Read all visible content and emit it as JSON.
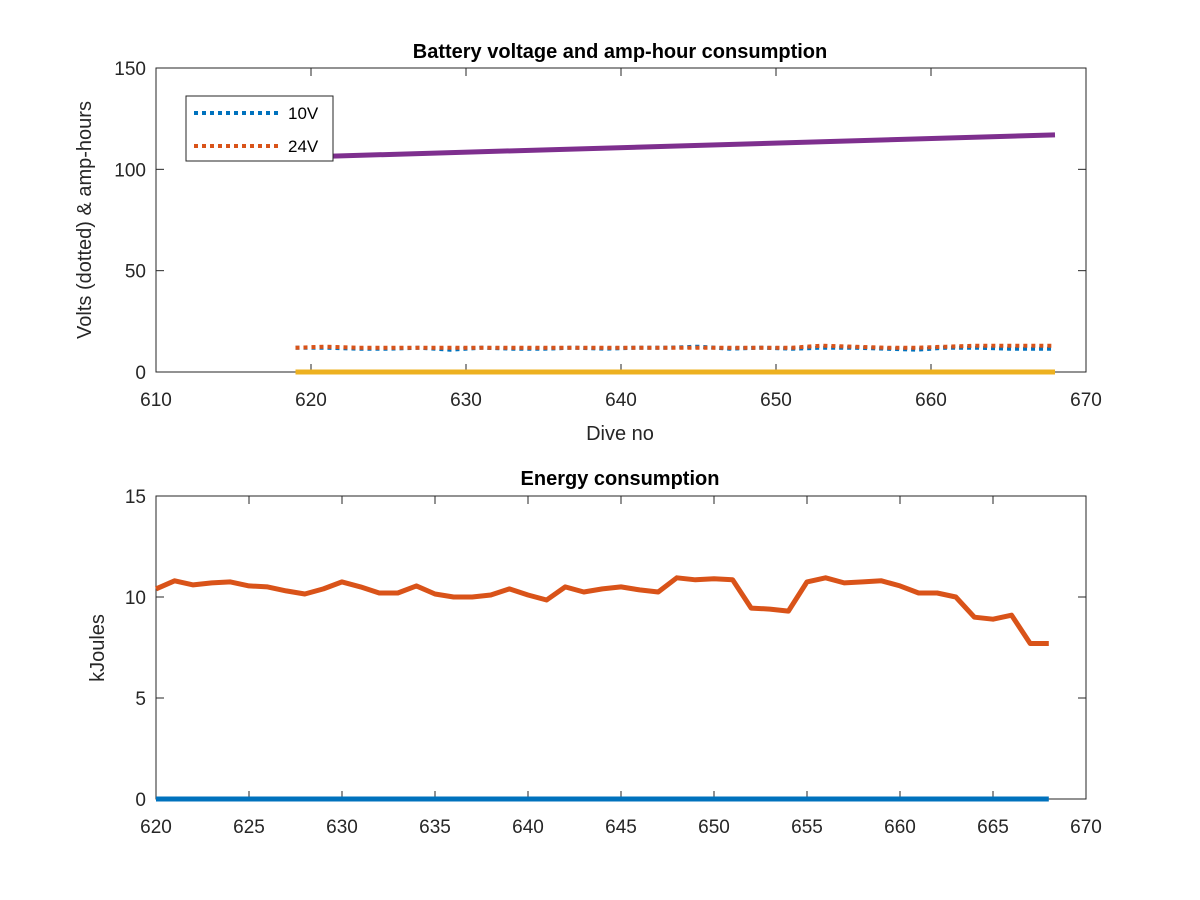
{
  "chart_data": [
    {
      "type": "line",
      "title": "Battery voltage and amp-hour consumption",
      "xlabel": "Dive no",
      "ylabel": "Volts (dotted) & amp-hours",
      "xlim": [
        610,
        670
      ],
      "ylim": [
        0,
        150
      ],
      "xticks": [
        "610",
        "620",
        "630",
        "640",
        "650",
        "660",
        "670"
      ],
      "yticks": [
        "0",
        "50",
        "100",
        "150"
      ],
      "legend_position": "top-left",
      "grid": false,
      "series": [
        {
          "name": "10V",
          "style": "dotted",
          "color": "#0072BD",
          "x": [
            619,
            621,
            623,
            625,
            627,
            629,
            631,
            633,
            635,
            637,
            639,
            641,
            643,
            645,
            647,
            649,
            651,
            653,
            655,
            657,
            659,
            661,
            663,
            665,
            667,
            668
          ],
          "y": [
            12,
            12,
            11.5,
            11.5,
            12,
            11,
            12,
            11.5,
            11.5,
            12,
            11.5,
            12,
            12,
            12.5,
            11.5,
            12,
            11.5,
            12,
            12,
            11.5,
            11,
            12,
            12,
            11.5,
            11.5,
            11.5
          ]
        },
        {
          "name": "24V",
          "style": "dotted",
          "color": "#D95319",
          "x": [
            619,
            621,
            623,
            625,
            627,
            629,
            631,
            633,
            635,
            637,
            639,
            641,
            643,
            645,
            647,
            649,
            651,
            653,
            655,
            657,
            659,
            661,
            663,
            665,
            667,
            668
          ],
          "y": [
            12,
            12.5,
            12,
            12,
            12,
            12,
            12,
            12,
            12,
            12,
            12,
            12,
            12,
            12,
            12,
            12,
            12,
            13,
            12.5,
            12,
            12,
            12.5,
            13,
            13,
            13,
            13
          ]
        },
        {
          "style": "solid",
          "color": "#7E2F8E",
          "x": [
            619,
            668
          ],
          "y": [
            106,
            117
          ]
        },
        {
          "style": "solid",
          "color": "#EDB120",
          "x": [
            619,
            668
          ],
          "y": [
            0,
            0
          ]
        }
      ]
    },
    {
      "type": "line",
      "title": "Energy consumption",
      "xlabel": "",
      "ylabel": "kJoules",
      "xlim": [
        620,
        670
      ],
      "ylim": [
        0,
        15
      ],
      "xticks": [
        "620",
        "625",
        "630",
        "635",
        "640",
        "645",
        "650",
        "655",
        "660",
        "665",
        "670"
      ],
      "yticks": [
        "0",
        "5",
        "10",
        "15"
      ],
      "grid": false,
      "series": [
        {
          "style": "solid",
          "color": "#0072BD",
          "x": [
            620,
            668
          ],
          "y": [
            0,
            0
          ]
        },
        {
          "style": "solid",
          "color": "#D95319",
          "x": [
            620,
            621,
            622,
            623,
            624,
            625,
            626,
            627,
            628,
            629,
            630,
            631,
            632,
            633,
            634,
            635,
            636,
            637,
            638,
            639,
            640,
            641,
            642,
            643,
            644,
            645,
            646,
            647,
            648,
            649,
            650,
            651,
            652,
            653,
            654,
            655,
            656,
            657,
            658,
            659,
            660,
            661,
            662,
            663,
            664,
            665,
            666,
            667,
            668
          ],
          "y": [
            10.4,
            10.8,
            10.6,
            10.7,
            10.75,
            10.55,
            10.5,
            10.3,
            10.15,
            10.4,
            10.75,
            10.5,
            10.2,
            10.2,
            10.55,
            10.15,
            10.0,
            10.0,
            10.1,
            10.4,
            10.1,
            9.85,
            10.5,
            10.25,
            10.4,
            10.5,
            10.35,
            10.25,
            10.95,
            10.85,
            10.9,
            10.85,
            9.45,
            9.4,
            9.3,
            10.75,
            10.95,
            10.7,
            10.75,
            10.8,
            10.55,
            10.2,
            10.2,
            10.0,
            9.0,
            8.9,
            9.1,
            7.7,
            7.7
          ]
        }
      ]
    }
  ]
}
